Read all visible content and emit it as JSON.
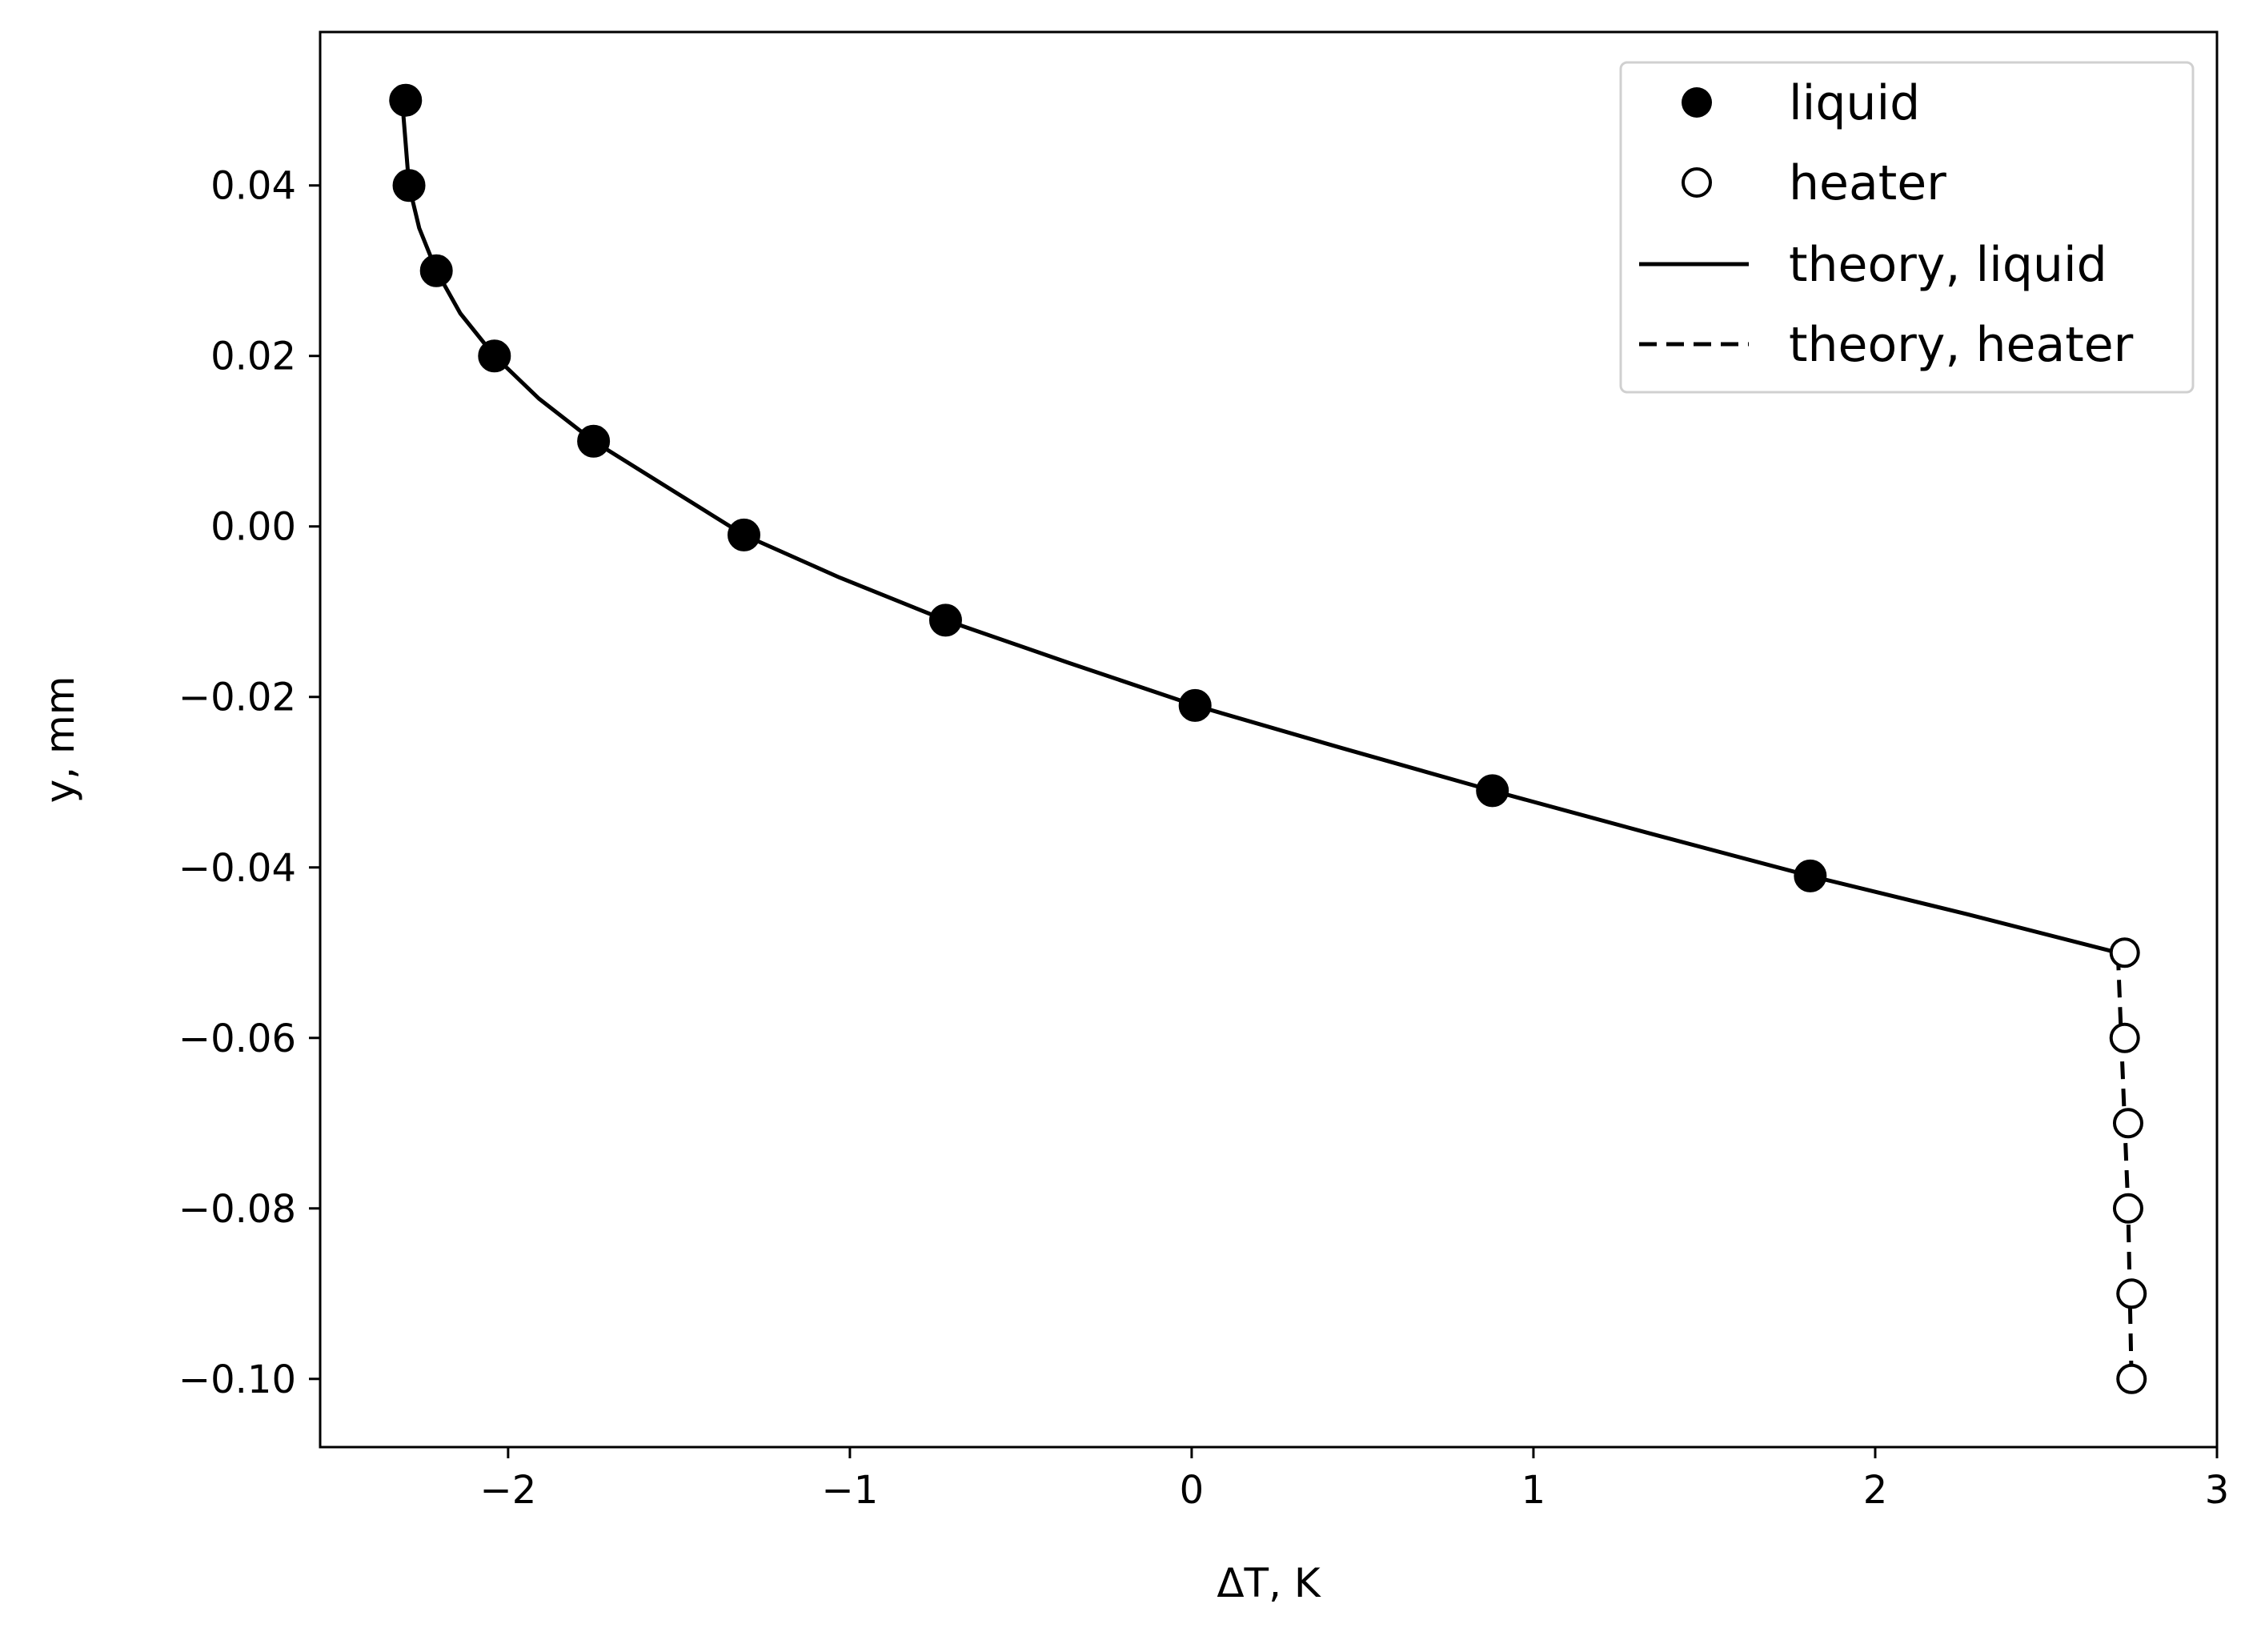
{
  "chart_data": {
    "type": "line",
    "xlabel": "ΔT, K",
    "ylabel": "y, mm",
    "xlim": [
      -2.55,
      3.0
    ],
    "ylim": [
      -0.108,
      0.058
    ],
    "x_ticks": [
      {
        "value": -2,
        "label": "−2"
      },
      {
        "value": -1,
        "label": "−1"
      },
      {
        "value": 0,
        "label": "0"
      },
      {
        "value": 1,
        "label": "1"
      },
      {
        "value": 2,
        "label": "2"
      },
      {
        "value": 3,
        "label": "3"
      }
    ],
    "y_ticks": [
      {
        "value": 0.04,
        "label": "0.04"
      },
      {
        "value": 0.02,
        "label": "0.02"
      },
      {
        "value": 0.0,
        "label": "0.00"
      },
      {
        "value": -0.02,
        "label": "−0.02"
      },
      {
        "value": -0.04,
        "label": "−0.04"
      },
      {
        "value": -0.06,
        "label": "−0.06"
      },
      {
        "value": -0.08,
        "label": "−0.08"
      },
      {
        "value": -0.1,
        "label": "−0.10"
      }
    ],
    "grid": false,
    "legend_position": "top-right",
    "series": [
      {
        "name": "liquid",
        "kind": "scatter",
        "marker": "filled-circle",
        "color": "#000000",
        "points": [
          {
            "x": -2.3,
            "y": 0.05
          },
          {
            "x": -2.29,
            "y": 0.04
          },
          {
            "x": -2.21,
            "y": 0.03
          },
          {
            "x": -2.04,
            "y": 0.02
          },
          {
            "x": -1.75,
            "y": 0.01
          },
          {
            "x": -1.31,
            "y": -0.001
          },
          {
            "x": -0.72,
            "y": -0.011
          },
          {
            "x": 0.01,
            "y": -0.021
          },
          {
            "x": 0.88,
            "y": -0.031
          },
          {
            "x": 1.81,
            "y": -0.041
          }
        ]
      },
      {
        "name": "heater",
        "kind": "scatter",
        "marker": "open-circle",
        "color": "#000000",
        "points": [
          {
            "x": 2.73,
            "y": -0.05
          },
          {
            "x": 2.73,
            "y": -0.06
          },
          {
            "x": 2.74,
            "y": -0.07
          },
          {
            "x": 2.74,
            "y": -0.08
          },
          {
            "x": 2.75,
            "y": -0.09
          },
          {
            "x": 2.75,
            "y": -0.1
          }
        ]
      },
      {
        "name": "theory, liquid",
        "kind": "line",
        "style": "solid",
        "color": "#000000",
        "points": [
          {
            "x": -2.31,
            "y": 0.05
          },
          {
            "x": -2.3,
            "y": 0.045
          },
          {
            "x": -2.29,
            "y": 0.04
          },
          {
            "x": -2.26,
            "y": 0.035
          },
          {
            "x": -2.21,
            "y": 0.03
          },
          {
            "x": -2.14,
            "y": 0.025
          },
          {
            "x": -2.04,
            "y": 0.02
          },
          {
            "x": -1.91,
            "y": 0.015
          },
          {
            "x": -1.75,
            "y": 0.01
          },
          {
            "x": -1.55,
            "y": 0.005
          },
          {
            "x": -1.31,
            "y": -0.001
          },
          {
            "x": -1.03,
            "y": -0.006
          },
          {
            "x": -0.72,
            "y": -0.011
          },
          {
            "x": -0.36,
            "y": -0.016
          },
          {
            "x": 0.01,
            "y": -0.021
          },
          {
            "x": 0.44,
            "y": -0.026
          },
          {
            "x": 0.88,
            "y": -0.031
          },
          {
            "x": 1.34,
            "y": -0.036
          },
          {
            "x": 1.81,
            "y": -0.041
          },
          {
            "x": 2.27,
            "y": -0.0455
          },
          {
            "x": 2.71,
            "y": -0.05
          }
        ]
      },
      {
        "name": "theory, heater",
        "kind": "line",
        "style": "dashed",
        "color": "#000000",
        "points": [
          {
            "x": 2.71,
            "y": -0.05
          },
          {
            "x": 2.72,
            "y": -0.06
          },
          {
            "x": 2.73,
            "y": -0.07
          },
          {
            "x": 2.74,
            "y": -0.08
          },
          {
            "x": 2.745,
            "y": -0.09
          },
          {
            "x": 2.75,
            "y": -0.1
          }
        ]
      }
    ]
  }
}
